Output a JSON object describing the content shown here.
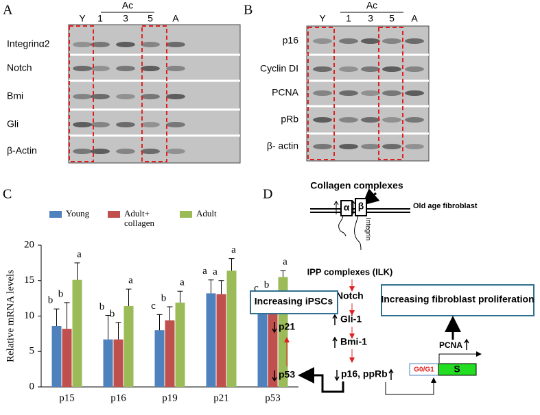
{
  "panel_labels": [
    "A",
    "B",
    "C",
    "D"
  ],
  "blot_a": {
    "lanes": [
      "Y",
      "1",
      "3",
      "5",
      "A"
    ],
    "group": "Ac",
    "rows": [
      "Integrinα2",
      "Notch",
      "Bmi",
      "Gli",
      "β-Actin"
    ]
  },
  "blot_b": {
    "lanes": [
      "Y",
      "1",
      "3",
      "5",
      "A"
    ],
    "group": "Ac",
    "rows": [
      "p16",
      "Cyclin DI",
      "PCNA",
      "pRb",
      "β- actin"
    ]
  },
  "chart_data": {
    "type": "bar",
    "y_label": "Relative mRNA levels",
    "categories": [
      "p15",
      "p16",
      "p19",
      "p21",
      "p53"
    ],
    "series": [
      {
        "name": "Young",
        "color": "#4f81bd",
        "values": [
          8.6,
          6.7,
          8.0,
          13.2,
          10.3
        ],
        "errors": [
          2.4,
          3.4,
          2.2,
          1.9,
          2.4
        ],
        "letters": [
          "b",
          "b",
          "c",
          "a",
          "c"
        ]
      },
      {
        "name": "Adult+ collagen",
        "color": "#c0504d",
        "values": [
          8.2,
          6.7,
          9.4,
          13.1,
          11.1
        ],
        "errors": [
          3.7,
          2.4,
          1.9,
          1.9,
          2.1
        ],
        "letters": [
          "b",
          "b",
          "b",
          "a",
          "b"
        ]
      },
      {
        "name": "Adult",
        "color": "#9bbb59",
        "values": [
          15.1,
          11.4,
          11.9,
          16.4,
          15.5
        ],
        "errors": [
          2.4,
          2.4,
          1.6,
          1.7,
          0.9
        ],
        "letters": [
          "a",
          "a",
          "a",
          "a",
          "a"
        ]
      }
    ],
    "ylim": [
      0,
      20
    ],
    "yticks": [
      0,
      5,
      10,
      15,
      20
    ]
  },
  "diagram": {
    "collagen": "Collagen complexes",
    "alpha": "α",
    "beta": "β",
    "membrane": "Old age fibroblast",
    "integrin": "Integrin",
    "ipp": "IPP complexes (ILK)",
    "notch": "Notch",
    "gli": "Gli-1",
    "bmi": "Bmi-1",
    "p16": "p16, ppRb",
    "ipsc_box": "Increasing iPSCs",
    "prolif_box": "Increasing fibroblast proliferation",
    "p21": "p21",
    "p53": "p53",
    "pcna": "PCNA",
    "g0g1": "G0/G1",
    "s": "S"
  }
}
